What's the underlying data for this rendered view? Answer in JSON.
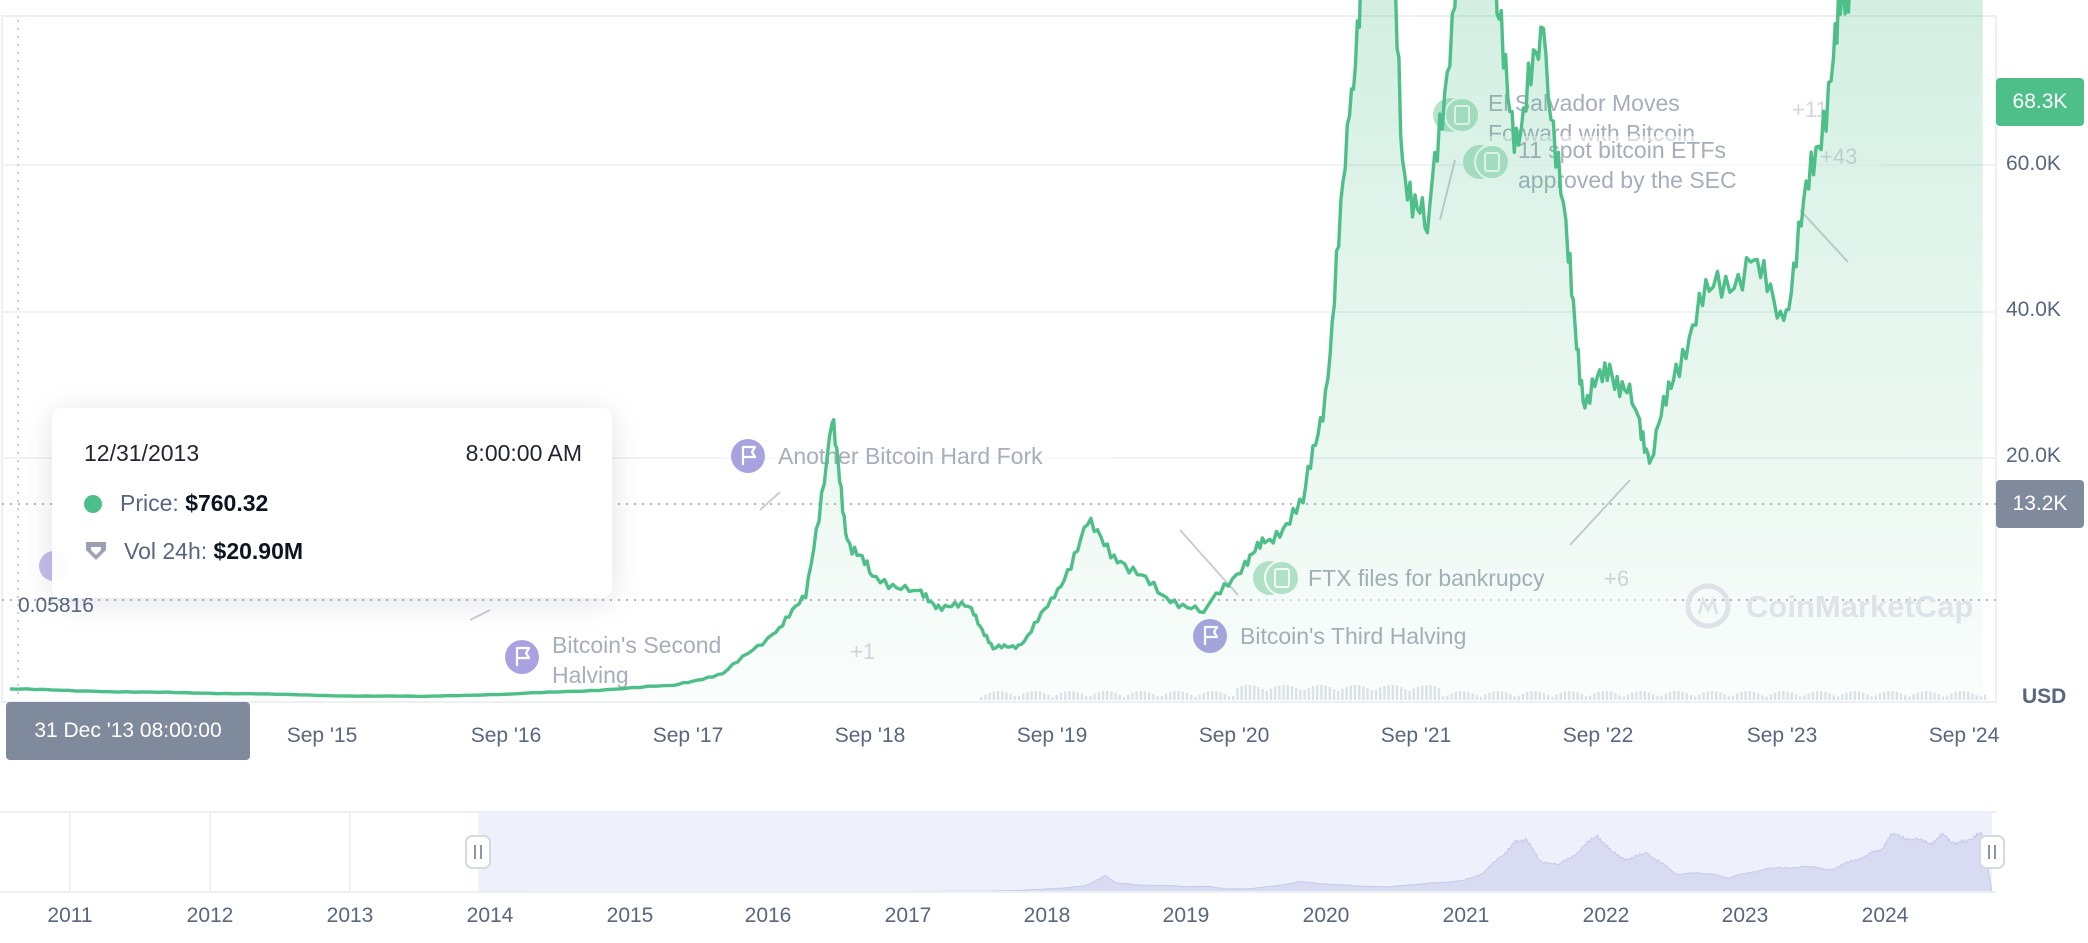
{
  "chart_data": {
    "type": "area",
    "currency": "USD",
    "x_ticks": [
      "Sep '15",
      "Sep '16",
      "Sep '17",
      "Sep '18",
      "Sep '19",
      "Sep '20",
      "Sep '21",
      "Sep '22",
      "Sep '23",
      "Sep '24"
    ],
    "y_ticks": [
      "20.0K",
      "40.0K",
      "60.0K"
    ],
    "ylim": [
      0,
      75000
    ],
    "current_price_label": "68.3K",
    "crosshair_value_label": "13.2K",
    "min_label": "0.05816",
    "series": [
      {
        "values": [
          [
            2013.0,
            760
          ],
          [
            2013.5,
            600
          ],
          [
            2014.0,
            500
          ],
          [
            2014.5,
            420
          ],
          [
            2015.0,
            280
          ],
          [
            2015.5,
            250
          ],
          [
            2016.0,
            400
          ],
          [
            2016.5,
            650
          ],
          [
            2017.0,
            1000
          ],
          [
            2017.3,
            1800
          ],
          [
            2017.6,
            4500
          ],
          [
            2017.8,
            7000
          ],
          [
            2017.96,
            19000
          ],
          [
            2018.05,
            11000
          ],
          [
            2018.2,
            8500
          ],
          [
            2018.45,
            7500
          ],
          [
            2018.6,
            6500
          ],
          [
            2018.8,
            6300
          ],
          [
            2018.93,
            3500
          ],
          [
            2019.1,
            3800
          ],
          [
            2019.3,
            7000
          ],
          [
            2019.5,
            12000
          ],
          [
            2019.7,
            9500
          ],
          [
            2019.95,
            7200
          ],
          [
            2020.2,
            6000
          ],
          [
            2020.45,
            9500
          ],
          [
            2020.6,
            11000
          ],
          [
            2020.8,
            13500
          ],
          [
            2020.95,
            22000
          ],
          [
            2021.08,
            40000
          ],
          [
            2021.2,
            57000
          ],
          [
            2021.29,
            63000
          ],
          [
            2021.4,
            37000
          ],
          [
            2021.55,
            32000
          ],
          [
            2021.7,
            47000
          ],
          [
            2021.86,
            67000
          ],
          [
            2021.97,
            47000
          ],
          [
            2022.1,
            38000
          ],
          [
            2022.25,
            46000
          ],
          [
            2022.4,
            30000
          ],
          [
            2022.5,
            20000
          ],
          [
            2022.65,
            23000
          ],
          [
            2022.8,
            20000
          ],
          [
            2022.9,
            16500
          ],
          [
            2023.05,
            23000
          ],
          [
            2023.25,
            28000
          ],
          [
            2023.5,
            30000
          ],
          [
            2023.7,
            26000
          ],
          [
            2023.85,
            35000
          ],
          [
            2024.0,
            44000
          ],
          [
            2024.1,
            50000
          ],
          [
            2024.2,
            69000
          ],
          [
            2024.35,
            62000
          ],
          [
            2024.5,
            58000
          ],
          [
            2024.6,
            67000
          ],
          [
            2024.7,
            56000
          ],
          [
            2024.8,
            62000
          ],
          [
            2024.9,
            68300
          ]
        ]
      }
    ],
    "events": [
      {
        "title": "El Salvador Moves Forward with Bitcoin",
        "line1": "El Salvador Moves",
        "line2": "Forward with Bitcoin",
        "count": "+11"
      },
      {
        "title": "11 spot bitcoin ETFs approved by the SEC",
        "line1": "11 spot bitcoin ETFs",
        "line2": "approved by the SEC",
        "count": "+43"
      },
      {
        "title": "Another Bitcoin Hard Fork",
        "line1": "Another Bitcoin Hard Fork",
        "count": ""
      },
      {
        "title": "Bitcoin's Second Halving",
        "line1": "Bitcoin's Second",
        "line2": "Halving",
        "count": "+1"
      },
      {
        "title": "FTX files for bankrupcy",
        "line1": "FTX files for bankrupcy",
        "count": "+6"
      },
      {
        "title": "Bitcoin's Third Halving",
        "line1": "Bitcoin's Third Halving",
        "count": ""
      }
    ],
    "navigator": {
      "years": [
        "2011",
        "2012",
        "2013",
        "2014",
        "2015",
        "2016",
        "2017",
        "2018",
        "2019",
        "2020",
        "2021",
        "2022",
        "2023",
        "2024"
      ]
    }
  },
  "tooltip": {
    "date": "12/31/2013",
    "time": "8:00:00 AM",
    "price_label": "Price: ",
    "price_value": "$760.32",
    "volume_label": "Vol 24h: ",
    "volume_value": "$20.90M"
  },
  "crosshair_date": "31 Dec '13 08:00:00",
  "watermark": "CoinMarketCap",
  "colors": {
    "line": "#4fbf8a",
    "area_top": "#4fbf8a",
    "badge_green": "#4fbf8a",
    "badge_gray": "#808a9d",
    "navigator_fill": "#eef0fb",
    "event_icon_purple": "#a8a3e0",
    "event_icon_green": "#b7e3cb"
  }
}
